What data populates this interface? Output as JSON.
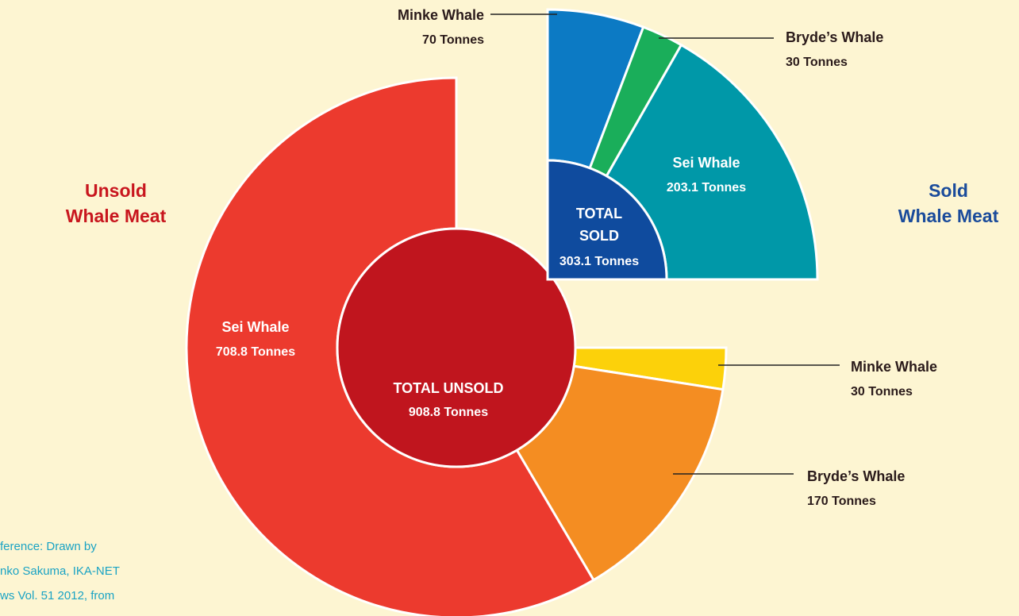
{
  "chart_data": {
    "type": "donut",
    "groups": [
      {
        "title_lines": [
          "Unsold",
          "Whale Meat"
        ],
        "title_color": "#c8161e",
        "total_lines": [
          "TOTAL UNSOLD"
        ],
        "total": 908.8,
        "total_label": "908.8 Tonnes",
        "total_color": "#c0151e",
        "segments": [
          {
            "name": "Minke Whale",
            "value": 30,
            "value_label": "30 Tonnes",
            "color": "#fcd10a"
          },
          {
            "name": "Bryde’s Whale",
            "value": 170,
            "value_label": "170 Tonnes",
            "color": "#f48d22"
          },
          {
            "name": "Sei Whale",
            "value": 708.8,
            "value_label": "708.8 Tonnes",
            "color": "#ec3a2e"
          }
        ]
      },
      {
        "title_lines": [
          "Sold",
          "Whale Meat"
        ],
        "title_color": "#1a4b9b",
        "total_lines": [
          "TOTAL",
          "SOLD"
        ],
        "total": 303.1,
        "total_label": "303.1 Tonnes",
        "total_color": "#0f4b9e",
        "segments": [
          {
            "name": "Minke Whale",
            "value": 70,
            "value_label": "70 Tonnes",
            "color": "#0c7ac4"
          },
          {
            "name": "Bryde’s Whale",
            "value": 30,
            "value_label": "30 Tonnes",
            "color": "#1aae5a"
          },
          {
            "name": "Sei Whale",
            "value": 203.1,
            "value_label": "203.1 Tonnes",
            "color": "#0098a8"
          }
        ]
      }
    ],
    "reference_lines": [
      "ference: Drawn by",
      "nko Sakuma, IKA-NET",
      "ws Vol. 51 2012, from"
    ]
  }
}
